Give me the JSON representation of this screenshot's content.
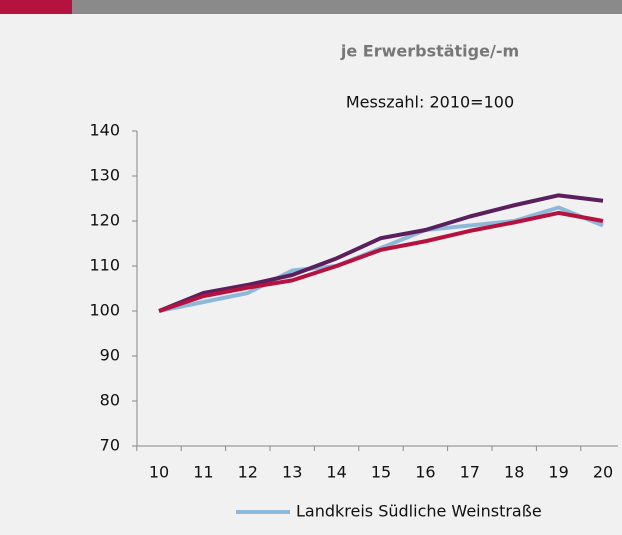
{
  "chart_data": {
    "type": "line",
    "title": "je Erwerbstätige/-m",
    "subtitle": "Messzahl: 2010=100",
    "categories": [
      "10",
      "11",
      "12",
      "13",
      "14",
      "15",
      "16",
      "17",
      "18",
      "19",
      "20"
    ],
    "series": [
      {
        "name": "Landkreis Südliche Weinstraße",
        "color": "#8fb8d8",
        "values": [
          100,
          102,
          104,
          109,
          110,
          114,
          118,
          119,
          120,
          123,
          119
        ]
      },
      {
        "color": "#5b1f5e",
        "values": [
          100,
          104,
          105.8,
          108,
          111.7,
          116.2,
          118,
          121,
          123.5,
          125.7,
          124.5
        ]
      },
      {
        "color": "#b5123f",
        "values": [
          100,
          103.3,
          105.2,
          106.8,
          110,
          113.6,
          115.5,
          117.8,
          119.7,
          121.8,
          120
        ]
      }
    ],
    "ylim": [
      70,
      140
    ],
    "yticks": [
      70,
      80,
      90,
      100,
      110,
      120,
      130,
      140
    ]
  }
}
